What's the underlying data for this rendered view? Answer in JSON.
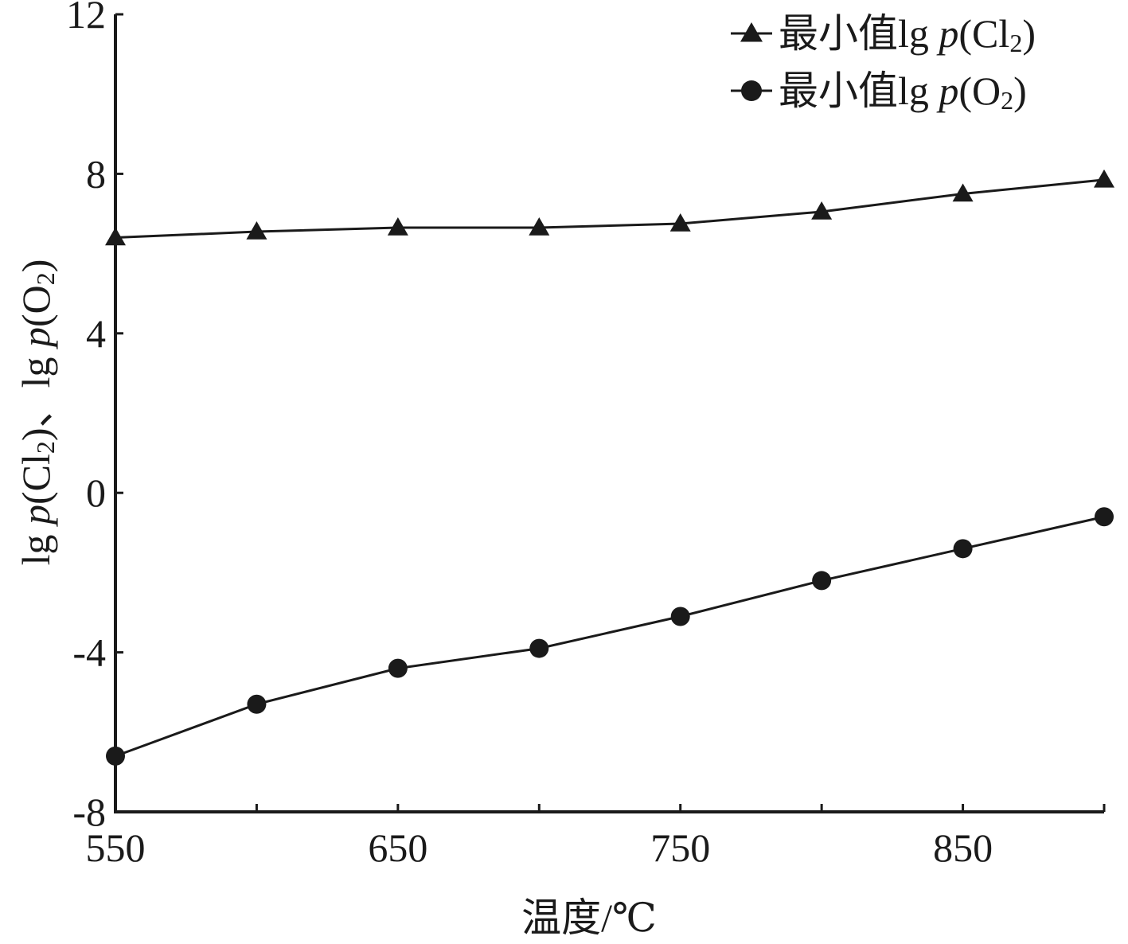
{
  "chart_data": {
    "type": "line",
    "xlabel": "温度/℃",
    "ylabel": "lg p(Cl₂)、lg p(O₂)",
    "ylabel_parts": [
      "lg ",
      "p",
      "(Cl",
      "2",
      ")、lg ",
      "p",
      "(O",
      "2",
      ")"
    ],
    "xlim": [
      550,
      900
    ],
    "ylim": [
      -8,
      12
    ],
    "x_ticks": [
      550,
      650,
      750,
      850
    ],
    "y_ticks": [
      -8,
      -4,
      0,
      4,
      8,
      12
    ],
    "x_tick_labels": [
      "550",
      "650",
      "750",
      "850"
    ],
    "y_tick_labels": [
      "-8",
      "-4",
      "0",
      "4",
      "8",
      "12"
    ],
    "grid": false,
    "legend_position": "top-right",
    "x": [
      550,
      600,
      650,
      700,
      750,
      800,
      850,
      900
    ],
    "series": [
      {
        "name": "最小值lg p(Cl₂)",
        "legend_parts": [
          "最小值lg ",
          "p",
          "(Cl",
          "2",
          ")"
        ],
        "marker": "triangle",
        "values": [
          6.4,
          6.55,
          6.65,
          6.65,
          6.75,
          7.05,
          7.5,
          7.85
        ]
      },
      {
        "name": "最小值lg p(O₂)",
        "legend_parts": [
          "最小值lg ",
          "p",
          "(O",
          "2",
          ")"
        ],
        "marker": "circle",
        "values": [
          -6.6,
          -5.3,
          -4.4,
          -3.9,
          -3.1,
          -2.2,
          -1.4,
          -0.6
        ]
      }
    ],
    "colors": {
      "line": "#1a1a1a",
      "marker": "#1a1a1a",
      "axis": "#1a1a1a"
    }
  }
}
